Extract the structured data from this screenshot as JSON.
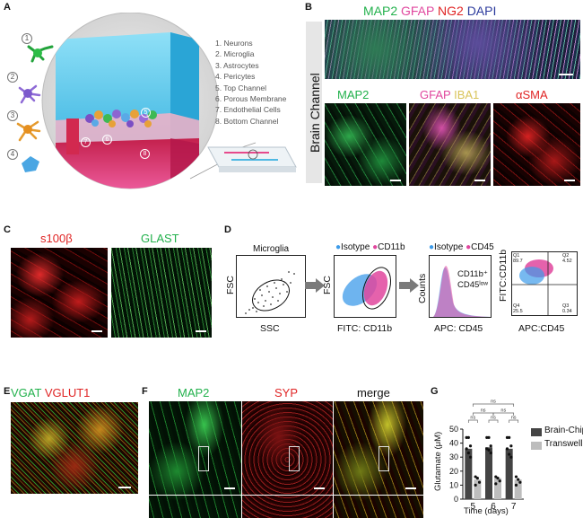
{
  "panels": {
    "A": {
      "label": "A",
      "numbers": [
        "1",
        "2",
        "3",
        "4"
      ],
      "chip_numbers": [
        "5",
        "7",
        "6",
        "8"
      ],
      "legend": [
        "1.   Neurons",
        "2.   Microglia",
        "3.   Astrocytes",
        "4.   Pericytes",
        "5.   Top Channel",
        "6.   Porous Membrane",
        "7.   Endothelial Cells",
        "8.   Bottom Channel"
      ]
    },
    "B": {
      "label": "B",
      "side_label": "Brain Channel",
      "top_title": {
        "map2": "MAP2",
        "gfap": "GFAP",
        "ng2": "NG2",
        "dapi": "DAPI"
      },
      "sub_titles": {
        "map2": "MAP2",
        "gfap": "GFAP",
        "iba1": "IBA1",
        "asma": "αSMA"
      }
    },
    "C": {
      "label": "C",
      "titles": {
        "s100b": "s100β",
        "glast": "GLAST"
      }
    },
    "D": {
      "label": "D",
      "plot1": {
        "gate": "Microglia",
        "ylabel": "FSC",
        "xlabel": "SSC"
      },
      "plot2": {
        "legend": [
          "Isotype",
          "CD11b"
        ],
        "ylabel": "FSC",
        "xlabel": "FITC: CD11b"
      },
      "plot3": {
        "legend": [
          "Isotype",
          "CD45"
        ],
        "ylabel": "Counts",
        "xlabel": "APC: CD45",
        "annotation_1": "CD11b⁺",
        "annotation_2": "CD45ˡᵒʷ"
      },
      "plot4": {
        "ylabel": "FITC:CD11b",
        "xlabel": "APC:CD45",
        "quadrants": {
          "q1": "Q1",
          "q1v": "89.7",
          "q2": "Q2",
          "q2v": "4.52",
          "q3": "Q3",
          "q3v": "0.34",
          "q4": "Q4",
          "q4v": "25.5"
        }
      }
    },
    "E": {
      "label": "E",
      "titles": {
        "vgat": "VGAT",
        "vglut1": "VGLUT1"
      }
    },
    "F": {
      "label": "F",
      "titles": {
        "map2": "MAP2",
        "syp": "SYP",
        "merge": "merge"
      }
    },
    "G": {
      "label": "G",
      "ylabel": "Glutamate (μM)",
      "xlabel": "Time (days)",
      "yticks": [
        "0",
        "10",
        "20",
        "30",
        "40",
        "50"
      ],
      "xticks": [
        "5",
        "6",
        "7"
      ],
      "sig": [
        "ns",
        "ns",
        "ns",
        "ns",
        "ns",
        "ns"
      ],
      "legend": [
        "Brain-Chip",
        "Transwell"
      ]
    }
  },
  "colors": {
    "green": "#22b14c",
    "magenta": "#e0479e",
    "red": "#e02424",
    "dapi_blue": "#2b3a9c",
    "iba1_yellow": "#d9c45a",
    "chip_blue": "#5bc8ea",
    "chip_pink": "#e64a8c",
    "isotype_blue": "#3d9be9",
    "bar_dark": "#444444",
    "bar_light": "#bdbdbd"
  },
  "chart_data": {
    "type": "bar",
    "categories": [
      "5",
      "6",
      "7"
    ],
    "series": [
      {
        "name": "Brain-Chip",
        "values": [
          36,
          37,
          36
        ]
      },
      {
        "name": "Transwell",
        "values": [
          14,
          15,
          14
        ]
      }
    ],
    "xlabel": "Time (days)",
    "ylabel": "Glutamate (μM)",
    "ylim": [
      0,
      50
    ],
    "yticks": [
      0,
      10,
      20,
      30,
      40,
      50
    ],
    "points": {
      "Brain-Chip": [
        [
          44,
          44,
          38,
          36,
          33,
          30
        ],
        [
          44,
          44,
          38,
          36,
          35,
          33
        ],
        [
          44,
          44,
          38,
          36,
          32,
          30
        ]
      ],
      "Transwell": [
        [
          16,
          15,
          12,
          10
        ],
        [
          16,
          15,
          13,
          11
        ],
        [
          16,
          14,
          12,
          10
        ]
      ]
    },
    "significance": "ns",
    "legend_position": "right"
  }
}
